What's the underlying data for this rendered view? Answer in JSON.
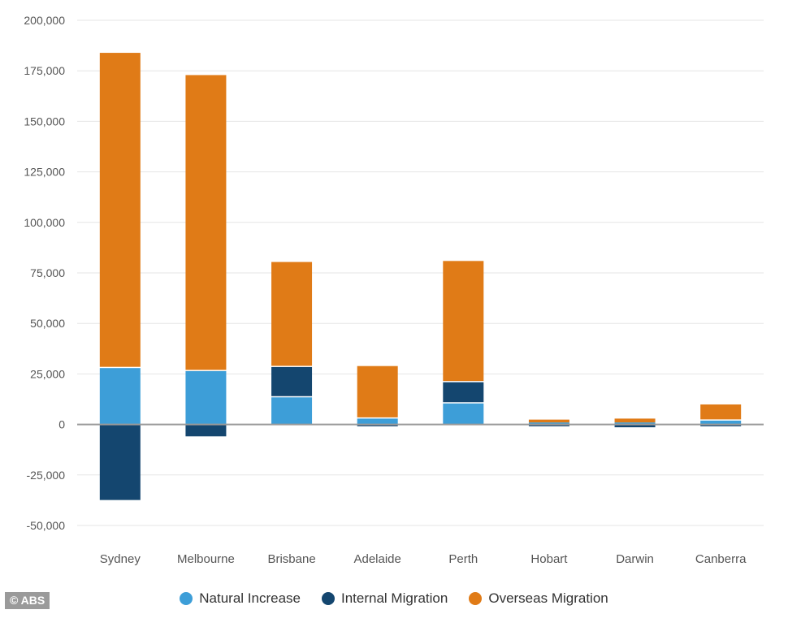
{
  "credit": "© ABS",
  "chart_data": {
    "type": "bar",
    "stacked": true,
    "categories": [
      "Sydney",
      "Melbourne",
      "Brisbane",
      "Adelaide",
      "Perth",
      "Hobart",
      "Darwin",
      "Canberra"
    ],
    "series": [
      {
        "name": "Natural Increase",
        "color": "#3d9ed8",
        "values": [
          28500,
          27000,
          14000,
          3500,
          11000,
          1000,
          1000,
          2500
        ]
      },
      {
        "name": "Internal Migration",
        "color": "#14466f",
        "values": [
          -38000,
          -6500,
          15000,
          -1500,
          10500,
          -1500,
          -2000,
          -1500
        ]
      },
      {
        "name": "Overseas Migration",
        "color": "#e07b17",
        "values": [
          156000,
          146500,
          52000,
          26000,
          60000,
          2000,
          2500,
          8000
        ]
      }
    ],
    "ylim": [
      -50000,
      200000
    ],
    "yticks": [
      -50000,
      -25000,
      0,
      25000,
      50000,
      75000,
      100000,
      125000,
      150000,
      175000,
      200000
    ],
    "ytick_labels": [
      "-50,000",
      "-25,000",
      "0",
      "25,000",
      "50,000",
      "75,000",
      "100,000",
      "125,000",
      "150,000",
      "175,000",
      "200,000"
    ],
    "grid": true,
    "legend_position": "bottom"
  }
}
